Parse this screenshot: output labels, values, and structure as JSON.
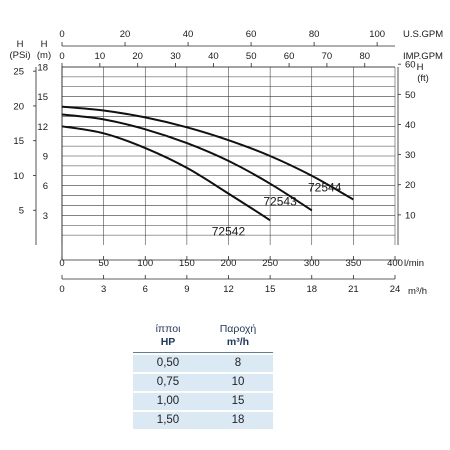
{
  "chart_data": {
    "type": "line",
    "units": {
      "h_psi": "H",
      "h_psi_unit": "(PSi)",
      "h_m": "H",
      "h_m_unit": "(m)",
      "h_ft": "H",
      "h_ft_unit": "(ft)",
      "us_gpm": "U.S.GPM",
      "imp_gpm": "IMP.GPM",
      "lmin": "l/min",
      "m3h": "m³/h"
    },
    "axes": {
      "x_lmin": {
        "range": [
          0,
          400
        ],
        "ticks": [
          0,
          50,
          100,
          150,
          200,
          250,
          300,
          350,
          400
        ]
      },
      "x_m3h": {
        "range": [
          0,
          24
        ],
        "ticks": [
          0,
          3,
          6,
          9,
          12,
          15,
          18,
          21,
          24
        ]
      },
      "x_usgpm": {
        "range": [
          0,
          105.67
        ],
        "ticks": [
          0,
          20,
          40,
          60,
          80,
          100
        ]
      },
      "x_impgpm": {
        "range": [
          0,
          87.99
        ],
        "ticks": [
          0,
          10,
          20,
          30,
          40,
          50,
          60,
          70,
          80
        ]
      },
      "y_m": {
        "range": [
          0,
          18
        ],
        "ticks": [
          3,
          6,
          9,
          12,
          15,
          18
        ],
        "grid_step": 1
      },
      "y_psi": {
        "range": [
          0,
          25.6
        ],
        "ticks": [
          5,
          10,
          15,
          20,
          25
        ]
      },
      "y_ft": {
        "range": [
          0,
          59.06
        ],
        "ticks": [
          10,
          20,
          30,
          40,
          50,
          60
        ]
      }
    },
    "grid": true,
    "series": [
      {
        "name": "72542",
        "color": "#111111",
        "points": [
          [
            0,
            12.0
          ],
          [
            50,
            11.3
          ],
          [
            100,
            9.8
          ],
          [
            150,
            7.8
          ],
          [
            200,
            5.2
          ],
          [
            250,
            2.5
          ]
        ]
      },
      {
        "name": "72543",
        "color": "#111111",
        "points": [
          [
            0,
            13.2
          ],
          [
            50,
            12.7
          ],
          [
            100,
            11.7
          ],
          [
            150,
            10.3
          ],
          [
            200,
            8.5
          ],
          [
            250,
            6.2
          ],
          [
            300,
            3.5
          ]
        ]
      },
      {
        "name": "72544",
        "color": "#111111",
        "points": [
          [
            0,
            14.0
          ],
          [
            50,
            13.6
          ],
          [
            100,
            12.9
          ],
          [
            150,
            11.9
          ],
          [
            200,
            10.6
          ],
          [
            250,
            9.0
          ],
          [
            300,
            7.0
          ],
          [
            350,
            4.6
          ]
        ]
      }
    ]
  },
  "table": {
    "header_1": [
      "ίπποι",
      "Παροχή"
    ],
    "header_2": [
      "HP",
      "m³/h"
    ],
    "rows": [
      [
        "0,50",
        "8"
      ],
      [
        "0,75",
        "10"
      ],
      [
        "1,00",
        "15"
      ],
      [
        "1,50",
        "18"
      ]
    ]
  }
}
